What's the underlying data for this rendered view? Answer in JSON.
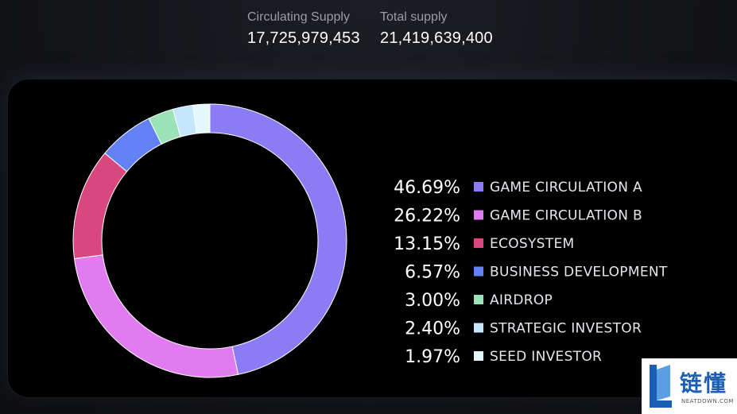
{
  "supply": {
    "circulating_label": "Circulating Supply",
    "circulating_value": "17,725,979,453",
    "total_label": "Total supply",
    "total_value": "21,419,639,400"
  },
  "chart_data": {
    "type": "pie",
    "subtype": "donut",
    "legend_position": "right",
    "series": [
      {
        "name": "GAME CIRCULATION A",
        "value": 46.69,
        "label": "46.69%",
        "color": "#8b7cf6"
      },
      {
        "name": "GAME CIRCULATION B",
        "value": 26.22,
        "label": "26.22%",
        "color": "#e07cf0"
      },
      {
        "name": "ECOSYSTEM",
        "value": 13.15,
        "label": "13.15%",
        "color": "#d9477f"
      },
      {
        "name": "BUSINESS DEVELOPMENT",
        "value": 6.57,
        "label": "6.57%",
        "color": "#6382f5"
      },
      {
        "name": "AIRDROP",
        "value": 3.0,
        "label": "3.00%",
        "color": "#9be2b8"
      },
      {
        "name": "STRATEGIC INVESTOR",
        "value": 2.4,
        "label": "2.40%",
        "color": "#c5e6fb"
      },
      {
        "name": "SEED INVESTOR",
        "value": 1.97,
        "label": "1.97%",
        "color": "#e4f8fb"
      }
    ]
  },
  "watermark": {
    "text": "链懂",
    "subtext": "NEATDOWN.COM"
  }
}
